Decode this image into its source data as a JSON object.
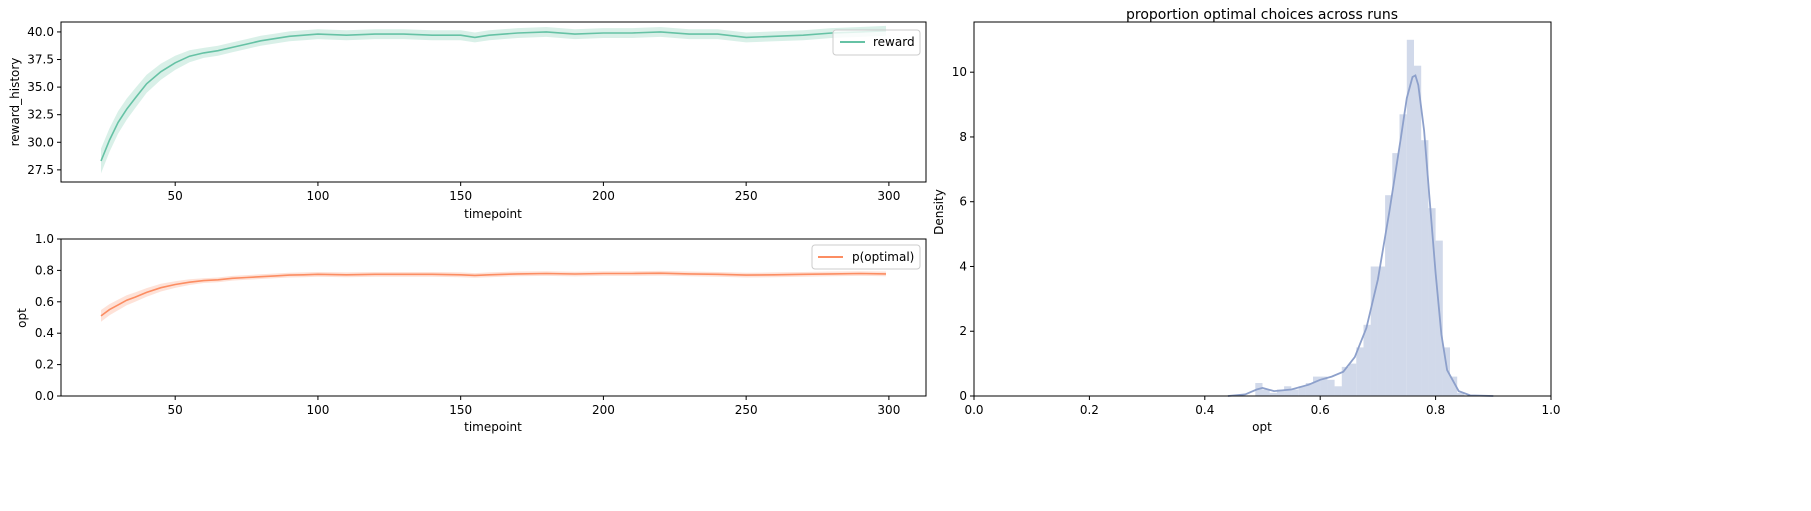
{
  "chart_data": [
    {
      "type": "line",
      "xlabel": "timepoint",
      "ylabel": "reward_history",
      "xlim": [
        10,
        313
      ],
      "ylim": [
        26.4,
        40.9
      ],
      "xticks": [
        50,
        100,
        150,
        200,
        250,
        300
      ],
      "yticks": [
        27.5,
        30.0,
        32.5,
        35.0,
        37.5,
        40.0
      ],
      "ytick_labels": [
        "27.5",
        "30.0",
        "32.5",
        "35.0",
        "37.5",
        "40.0"
      ],
      "legend": {
        "position": "top-right",
        "entries": [
          "reward"
        ]
      },
      "band_halfwidth": 0.45,
      "series": [
        {
          "name": "reward",
          "color": "#66c2a5",
          "x": [
            24,
            27,
            30,
            33,
            36,
            40,
            45,
            50,
            55,
            60,
            65,
            70,
            75,
            80,
            85,
            90,
            95,
            100,
            110,
            120,
            130,
            140,
            150,
            155,
            160,
            170,
            180,
            190,
            200,
            210,
            220,
            230,
            240,
            250,
            260,
            270,
            280,
            290,
            299
          ],
          "y": [
            28.3,
            30.2,
            31.8,
            33.0,
            34.0,
            35.3,
            36.4,
            37.2,
            37.8,
            38.1,
            38.3,
            38.6,
            38.9,
            39.2,
            39.4,
            39.6,
            39.7,
            39.8,
            39.7,
            39.8,
            39.8,
            39.7,
            39.7,
            39.5,
            39.7,
            39.9,
            40.0,
            39.8,
            39.9,
            39.9,
            40.0,
            39.8,
            39.8,
            39.5,
            39.6,
            39.7,
            39.9,
            40.0,
            40.1
          ]
        }
      ]
    },
    {
      "type": "line",
      "xlabel": "timepoint",
      "ylabel": "opt",
      "xlim": [
        10,
        313
      ],
      "ylim": [
        0,
        1.0
      ],
      "xticks": [
        50,
        100,
        150,
        200,
        250,
        300
      ],
      "yticks": [
        0.0,
        0.2,
        0.4,
        0.6,
        0.8,
        1.0
      ],
      "ytick_labels": [
        "0.0",
        "0.2",
        "0.4",
        "0.6",
        "0.8",
        "1.0"
      ],
      "legend": {
        "position": "top-right",
        "entries": [
          "p(optimal)"
        ]
      },
      "band_halfwidth": 0.015,
      "series": [
        {
          "name": "p(optimal)",
          "color": "#fc8d62",
          "x": [
            24,
            27,
            30,
            33,
            36,
            40,
            45,
            50,
            55,
            60,
            65,
            70,
            75,
            80,
            85,
            90,
            95,
            100,
            110,
            120,
            130,
            140,
            150,
            155,
            160,
            170,
            180,
            190,
            200,
            210,
            220,
            230,
            240,
            250,
            260,
            270,
            280,
            290,
            299
          ],
          "y": [
            0.51,
            0.55,
            0.58,
            0.61,
            0.63,
            0.66,
            0.69,
            0.71,
            0.725,
            0.735,
            0.74,
            0.75,
            0.755,
            0.76,
            0.765,
            0.77,
            0.772,
            0.775,
            0.772,
            0.775,
            0.775,
            0.775,
            0.772,
            0.768,
            0.772,
            0.778,
            0.78,
            0.777,
            0.78,
            0.78,
            0.782,
            0.778,
            0.775,
            0.77,
            0.772,
            0.775,
            0.778,
            0.78,
            0.778
          ]
        }
      ]
    },
    {
      "type": "bar",
      "title": "proportion optimal choices across runs",
      "xlabel": "opt",
      "ylabel": "Density",
      "xlim": [
        0,
        1.0
      ],
      "ylim": [
        0,
        11.55
      ],
      "xticks": [
        0.0,
        0.2,
        0.4,
        0.6,
        0.8,
        1.0
      ],
      "xtick_labels": [
        "0.0",
        "0.2",
        "0.4",
        "0.6",
        "0.8",
        "1.0"
      ],
      "yticks": [
        0,
        2,
        4,
        6,
        8,
        10
      ],
      "ytick_labels": [
        "0",
        "2",
        "4",
        "6",
        "8",
        "10"
      ],
      "hist_color": "#8da0cb",
      "kde_color": "#8da0cb",
      "bin_width": 0.0125,
      "bins_start": [
        0.4875,
        0.5,
        0.5125,
        0.525,
        0.5375,
        0.55,
        0.5625,
        0.575,
        0.5875,
        0.6,
        0.6125,
        0.625,
        0.6375,
        0.65,
        0.6625,
        0.675,
        0.6875,
        0.7,
        0.7125,
        0.725,
        0.7375,
        0.75,
        0.7625,
        0.775,
        0.7875,
        0.8,
        0.8125,
        0.825,
        0.8375
      ],
      "hist_values": [
        0.4,
        0.2,
        0.1,
        0.2,
        0.3,
        0.2,
        0.3,
        0.4,
        0.6,
        0.6,
        0.5,
        0.3,
        0.9,
        1.0,
        1.5,
        2.2,
        4.0,
        4.0,
        6.2,
        7.5,
        8.7,
        11.0,
        10.2,
        7.9,
        5.8,
        4.8,
        1.5,
        0.6,
        0.1
      ],
      "kde_x": [
        0.44,
        0.47,
        0.49,
        0.5,
        0.52,
        0.55,
        0.58,
        0.6,
        0.62,
        0.64,
        0.66,
        0.68,
        0.7,
        0.72,
        0.74,
        0.75,
        0.76,
        0.765,
        0.77,
        0.78,
        0.79,
        0.8,
        0.81,
        0.82,
        0.84,
        0.86,
        0.9
      ],
      "kde_y": [
        0.0,
        0.05,
        0.2,
        0.25,
        0.15,
        0.2,
        0.35,
        0.5,
        0.6,
        0.75,
        1.2,
        2.1,
        3.6,
        5.7,
        8.0,
        9.2,
        9.85,
        9.9,
        9.6,
        8.2,
        6.0,
        3.8,
        1.9,
        0.8,
        0.15,
        0.02,
        0.0
      ]
    }
  ]
}
